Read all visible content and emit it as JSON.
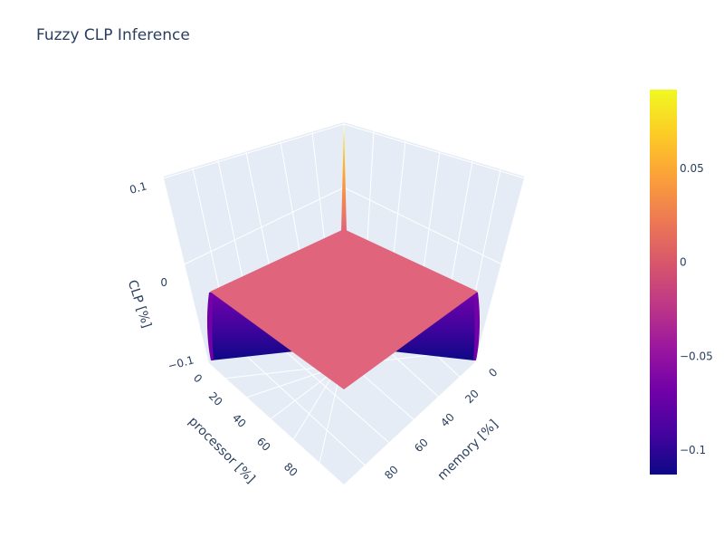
{
  "chart_data": {
    "type": "surface",
    "title": "Fuzzy CLP Inference",
    "x_axis": {
      "label": "processor [%]",
      "ticks": [
        0,
        20,
        40,
        60,
        80
      ],
      "range": [
        0,
        100
      ]
    },
    "y_axis": {
      "label": "memory [%]",
      "ticks": [
        0,
        20,
        40,
        60,
        80
      ],
      "range": [
        0,
        100
      ]
    },
    "z_axis": {
      "label": "CLP [%]",
      "ticks": [
        -0.1,
        0,
        0.1
      ],
      "tick_labels": [
        "−0.1",
        "0",
        "0.1"
      ],
      "range": [
        -0.11,
        0.11
      ]
    },
    "surface": {
      "baseline_value": 0,
      "features": [
        {
          "where": "processor 0, memory 0",
          "value": 0.09
        },
        {
          "where": "processor 0 edge",
          "value": -0.11
        },
        {
          "where": "memory 100 edge",
          "value": -0.11
        }
      ]
    },
    "colorbar": {
      "ticks": [
        0.05,
        0,
        -0.05,
        -0.1
      ],
      "tick_labels": [
        "0.05",
        "0",
        "−0.05",
        "−0.1"
      ],
      "range": [
        -0.113,
        0.092
      ],
      "colorscale": "plasma"
    },
    "grid": true
  },
  "colors": {
    "scene_bg": "#e5ecf6",
    "grid": "#ffffff",
    "text": "#2a3f5f",
    "surface_flat": "#e0647c"
  }
}
